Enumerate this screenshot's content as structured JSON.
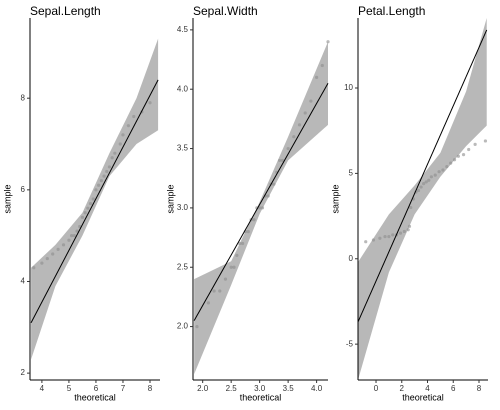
{
  "chart_data": [
    {
      "type": "qq",
      "title": "Sepal.Length",
      "x_label": "theoretical",
      "y_label": "sample",
      "xlim": [
        3.56,
        8.37
      ],
      "ylim": [
        1.85,
        9.75
      ],
      "xticks": [
        4,
        5,
        6,
        7,
        8
      ],
      "yticks": [
        2,
        4,
        6,
        8
      ],
      "point_color": "#8c8c8c",
      "line_color": "#000000",
      "band_color": "#a6a6a6",
      "x": [
        3.7,
        4.0,
        4.2,
        4.4,
        4.6,
        4.8,
        5.0,
        5.1,
        5.2,
        5.3,
        5.4,
        5.5,
        5.6,
        5.7,
        5.8,
        5.9,
        6.0,
        6.1,
        6.2,
        6.3,
        6.4,
        6.5,
        6.6,
        6.7,
        6.9,
        7.0,
        7.2,
        7.4,
        7.7,
        8.0
      ],
      "values": [
        4.3,
        4.4,
        4.5,
        4.6,
        4.7,
        4.8,
        4.9,
        5.0,
        5.0,
        5.1,
        5.2,
        5.4,
        5.5,
        5.6,
        5.7,
        5.8,
        6.0,
        6.1,
        6.2,
        6.3,
        6.4,
        6.5,
        6.7,
        6.8,
        7.0,
        7.2,
        7.4,
        7.6,
        7.7,
        7.9
      ],
      "line": {
        "x": [
          3.6,
          8.3
        ],
        "values": [
          3.1,
          8.4
        ]
      },
      "band": {
        "x": [
          3.6,
          4.5,
          5.5,
          6.5,
          7.5,
          8.3
        ],
        "lower": [
          2.3,
          3.9,
          5.0,
          6.3,
          7.0,
          7.3
        ],
        "upper": [
          4.3,
          4.8,
          5.5,
          6.8,
          8.0,
          9.3
        ]
      }
    },
    {
      "type": "qq",
      "title": "Sepal.Width",
      "x_label": "theoretical",
      "y_label": "sample",
      "xlim": [
        1.83,
        4.2
      ],
      "ylim": [
        1.55,
        4.6
      ],
      "xticks": [
        {
          "value": 2,
          "label": "2.0"
        },
        {
          "value": 2.5,
          "label": "2.5"
        },
        {
          "value": 3,
          "label": "3.0"
        },
        {
          "value": 3.5,
          "label": "3.5"
        },
        {
          "value": 4,
          "label": "4.0"
        }
      ],
      "yticks": [
        {
          "value": 2,
          "label": "2.0"
        },
        {
          "value": 2.5,
          "label": "2.5"
        },
        {
          "value": 3,
          "label": "3.0"
        },
        {
          "value": 3.5,
          "label": "3.5"
        },
        {
          "value": 4,
          "label": "4.0"
        },
        {
          "value": 4.5,
          "label": "4.5"
        }
      ],
      "point_color": "#8c8c8c",
      "line_color": "#000000",
      "band_color": "#a6a6a6",
      "x": [
        1.9,
        2.1,
        2.2,
        2.3,
        2.4,
        2.5,
        2.55,
        2.6,
        2.65,
        2.7,
        2.75,
        2.8,
        2.85,
        2.9,
        2.95,
        3.0,
        3.05,
        3.1,
        3.15,
        3.2,
        3.25,
        3.3,
        3.35,
        3.4,
        3.5,
        3.6,
        3.7,
        3.8,
        3.9,
        4.0,
        4.1,
        4.2
      ],
      "values": [
        2.0,
        2.2,
        2.3,
        2.3,
        2.4,
        2.5,
        2.5,
        2.6,
        2.7,
        2.7,
        2.8,
        2.8,
        2.9,
        2.9,
        3.0,
        3.0,
        3.0,
        3.1,
        3.1,
        3.2,
        3.2,
        3.3,
        3.4,
        3.4,
        3.5,
        3.6,
        3.7,
        3.8,
        3.9,
        4.1,
        4.2,
        4.4
      ],
      "line": {
        "x": [
          1.85,
          4.2
        ],
        "values": [
          2.05,
          4.05
        ]
      },
      "band": {
        "x": [
          1.85,
          2.5,
          3.0,
          3.5,
          4.2
        ],
        "lower": [
          1.6,
          2.35,
          2.95,
          3.4,
          3.7
        ],
        "upper": [
          2.4,
          2.55,
          3.05,
          3.6,
          4.4
        ]
      }
    },
    {
      "type": "qq",
      "title": "Petal.Length",
      "x_label": "theoretical",
      "y_label": "sample",
      "xlim": [
        -1.4,
        8.7
      ],
      "ylim": [
        -7.1,
        14.1
      ],
      "xticks": [
        0,
        2,
        4,
        6,
        8
      ],
      "yticks": [
        -5,
        0,
        5,
        10
      ],
      "point_color": "#8c8c8c",
      "line_color": "#000000",
      "band_color": "#a6a6a6",
      "x": [
        -0.8,
        -0.2,
        0.3,
        0.7,
        1.0,
        1.3,
        1.6,
        1.9,
        2.2,
        2.5,
        2.6,
        2.7,
        2.9,
        3.1,
        3.3,
        3.5,
        3.7,
        3.9,
        4.1,
        4.3,
        4.6,
        4.9,
        5.2,
        5.5,
        5.8,
        6.1,
        6.4,
        6.8,
        7.2,
        7.7,
        8.5
      ],
      "values": [
        1.0,
        1.1,
        1.2,
        1.3,
        1.3,
        1.4,
        1.4,
        1.5,
        1.6,
        1.7,
        1.9,
        3.0,
        3.5,
        3.9,
        4.0,
        4.2,
        4.4,
        4.5,
        4.6,
        4.8,
        4.9,
        5.1,
        5.2,
        5.4,
        5.6,
        5.8,
        6.0,
        6.1,
        6.4,
        6.7,
        6.9
      ],
      "line": {
        "x": [
          -1.4,
          8.6
        ],
        "values": [
          -3.7,
          13.4
        ]
      },
      "band": {
        "x": [
          -1.4,
          1,
          3,
          5,
          7,
          8.6
        ],
        "lower": [
          -7.1,
          -0.8,
          2.6,
          4.8,
          6.6,
          7.8
        ],
        "upper": [
          -0.2,
          2.6,
          4.3,
          6.2,
          9.8,
          14.1
        ]
      }
    }
  ]
}
